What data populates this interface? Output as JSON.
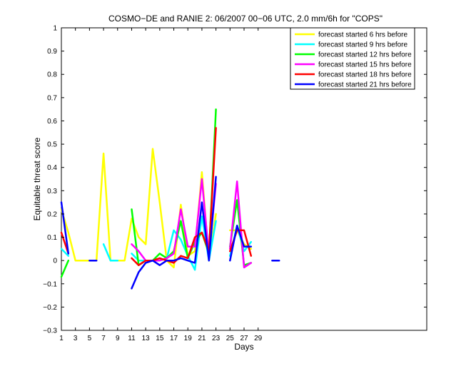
{
  "chart_data": {
    "type": "line",
    "title": "COSMO−DE and RANIE 2: 06/2007 00−06 UTC, 2.0 mm/6h for \"COPS\"",
    "xlabel": "Days",
    "ylabel": "Equitable threat score",
    "xlim": [
      1,
      53
    ],
    "ylim": [
      -0.3,
      1
    ],
    "xticks": [
      1,
      3,
      5,
      7,
      9,
      11,
      13,
      15,
      17,
      19,
      21,
      23,
      25,
      27,
      29
    ],
    "yticks": [
      -0.3,
      -0.2,
      -0.1,
      0,
      0.1,
      0.2,
      0.3,
      0.4,
      0.5,
      0.6,
      0.7,
      0.8,
      0.9,
      1
    ],
    "ytick_labels": [
      "−0.3",
      "−0.2",
      "−0.1",
      "0",
      "0.1",
      "0.2",
      "0.3",
      "0.4",
      "0.5",
      "0.6",
      "0.7",
      "0.8",
      "0.9",
      "1"
    ],
    "legend_position": "top-right",
    "series": [
      {
        "name": "forecast started 6 hrs before",
        "color": "#ffff00",
        "points": [
          [
            1,
            0.22
          ],
          [
            2,
            0.12
          ],
          [
            3,
            0.0
          ],
          [
            4,
            0.0
          ],
          [
            5,
            0.0
          ],
          [
            6,
            0.0
          ],
          [
            7,
            0.46
          ],
          [
            8,
            0.0
          ],
          [
            9,
            0.0
          ],
          [
            10,
            0.0
          ],
          [
            11,
            0.18
          ],
          [
            12,
            0.1
          ],
          [
            13,
            0.07
          ],
          [
            14,
            0.48
          ],
          [
            15,
            0.25
          ],
          [
            16,
            0.0
          ],
          [
            17,
            -0.03
          ],
          [
            18,
            0.24
          ],
          [
            19,
            0.02
          ],
          [
            20,
            0.04
          ],
          [
            21,
            0.38
          ],
          [
            22,
            0.0
          ],
          [
            23,
            0.2
          ],
          null,
          [
            25,
            0.13
          ],
          [
            26,
            0.13
          ],
          [
            27,
            0.07
          ],
          [
            28,
            0.05
          ]
        ]
      },
      {
        "name": "forecast started 9 hrs before",
        "color": "#00ffff",
        "points": [
          [
            1,
            0.05
          ],
          [
            2,
            0.02
          ],
          null,
          [
            7,
            0.07
          ],
          [
            8,
            0.0
          ],
          [
            9,
            0.0
          ],
          null,
          [
            11,
            0.03
          ],
          [
            12,
            0.0
          ],
          [
            13,
            0.0
          ],
          [
            14,
            0.0
          ],
          [
            15,
            0.0
          ],
          [
            16,
            0.01
          ],
          [
            17,
            0.13
          ],
          [
            18,
            0.09
          ],
          [
            19,
            0.02
          ],
          [
            20,
            -0.04
          ],
          [
            21,
            0.19
          ],
          [
            22,
            0.0
          ],
          [
            23,
            0.17
          ],
          null,
          [
            25,
            0.02
          ],
          [
            26,
            0.15
          ],
          [
            27,
            0.04
          ],
          [
            28,
            0.08
          ]
        ]
      },
      {
        "name": "forecast started 12 hrs before",
        "color": "#00ff00",
        "points": [
          [
            1,
            -0.07
          ],
          [
            2,
            0.0
          ],
          null,
          [
            11,
            0.22
          ],
          [
            12,
            -0.02
          ],
          [
            13,
            0.0
          ],
          [
            14,
            0.0
          ],
          [
            15,
            0.03
          ],
          [
            16,
            0.01
          ],
          [
            17,
            0.04
          ],
          [
            18,
            0.17
          ],
          [
            19,
            0.01
          ],
          [
            20,
            0.08
          ],
          [
            21,
            0.12
          ],
          [
            22,
            0.03
          ],
          [
            23,
            0.65
          ],
          null,
          [
            25,
            0.06
          ],
          [
            26,
            0.26
          ],
          [
            27,
            -0.02
          ],
          [
            28,
            -0.01
          ]
        ]
      },
      {
        "name": "forecast started 15 hrs before",
        "color": "#ff00ff",
        "points": [
          [
            11,
            0.07
          ],
          [
            12,
            0.04
          ],
          [
            13,
            0.0
          ],
          [
            14,
            0.0
          ],
          [
            15,
            0.0
          ],
          [
            16,
            0.01
          ],
          [
            17,
            0.03
          ],
          [
            18,
            0.22
          ],
          [
            19,
            0.06
          ],
          [
            20,
            0.06
          ],
          [
            21,
            0.35
          ],
          [
            22,
            0.02
          ],
          [
            23,
            0.33
          ],
          null,
          [
            25,
            0.05
          ],
          [
            26,
            0.34
          ],
          [
            27,
            -0.03
          ],
          [
            28,
            -0.01
          ]
        ]
      },
      {
        "name": "forecast started 18 hrs before",
        "color": "#ff0000",
        "points": [
          [
            1,
            0.12
          ],
          [
            2,
            0.03
          ],
          null,
          [
            11,
            0.01
          ],
          [
            12,
            -0.02
          ],
          [
            13,
            0.0
          ],
          [
            14,
            0.0
          ],
          [
            15,
            0.01
          ],
          [
            16,
            0.0
          ],
          [
            17,
            -0.01
          ],
          [
            18,
            0.02
          ],
          [
            19,
            0.01
          ],
          [
            20,
            0.1
          ],
          [
            21,
            0.12
          ],
          [
            22,
            0.04
          ],
          [
            23,
            0.57
          ],
          null,
          [
            25,
            0.04
          ],
          [
            26,
            0.13
          ],
          [
            27,
            0.13
          ],
          [
            28,
            0.02
          ]
        ]
      },
      {
        "name": "forecast started 21 hrs before",
        "color": "#0000ff",
        "points": [
          [
            1,
            0.25
          ],
          [
            2,
            0.03
          ],
          null,
          [
            5,
            0.0
          ],
          [
            6,
            0.0
          ],
          null,
          [
            11,
            -0.12
          ],
          [
            12,
            -0.05
          ],
          [
            13,
            -0.01
          ],
          [
            14,
            0.0
          ],
          [
            15,
            -0.02
          ],
          [
            16,
            0.0
          ],
          [
            17,
            0.0
          ],
          [
            18,
            0.01
          ],
          [
            19,
            0.0
          ],
          [
            20,
            -0.01
          ],
          [
            21,
            0.25
          ],
          [
            22,
            0.0
          ],
          [
            23,
            0.36
          ],
          null,
          [
            25,
            0.0
          ],
          [
            26,
            0.15
          ],
          [
            27,
            0.06
          ],
          [
            28,
            0.06
          ],
          null,
          [
            31,
            0.0
          ],
          [
            32,
            0.0
          ]
        ]
      }
    ]
  }
}
